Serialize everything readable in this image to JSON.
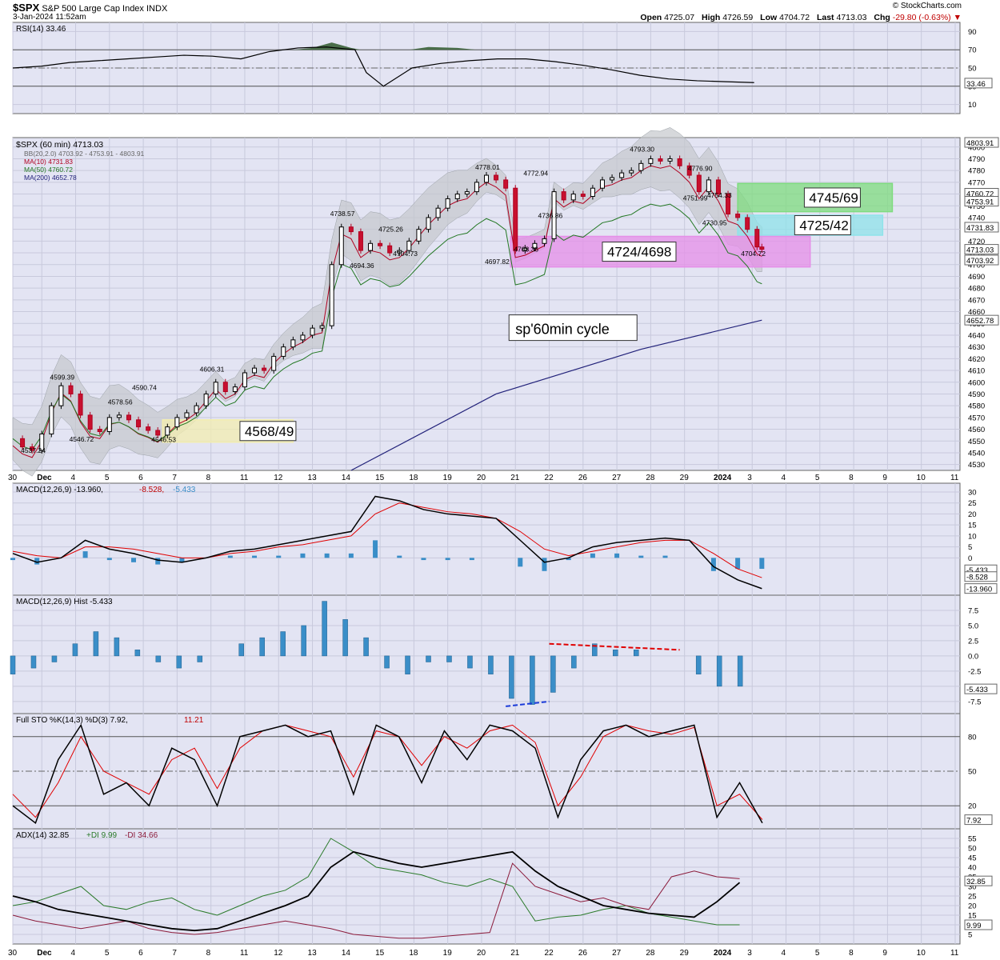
{
  "header": {
    "symbol": "$SPX",
    "name": "S&P 500 Large Cap Index",
    "exchange": "INDX",
    "datetime": "3-Jan-2024 11:52am",
    "brand": "© StockCharts.com",
    "open_label": "Open",
    "open": "4725.07",
    "high_label": "High",
    "high": "4726.59",
    "low_label": "Low",
    "low": "4704.72",
    "last_label": "Last",
    "last": "4713.03",
    "chg_label": "Chg",
    "chg": "-29.80 (-0.63%)"
  },
  "chart_data": [
    {
      "type": "line",
      "panel": "rsi",
      "legend": "RSI(14) 33.46",
      "ylim": [
        0,
        100
      ],
      "ticks": [
        "90",
        "70",
        "50",
        "30",
        "10"
      ],
      "tick_values": [
        90,
        70,
        50,
        30,
        10
      ],
      "reference_lines": [
        70,
        50,
        30
      ],
      "last_badge": "33.46",
      "x": [
        0,
        5,
        10,
        15,
        20,
        25,
        30,
        35,
        40,
        45,
        50,
        55,
        60,
        62,
        65,
        70,
        75,
        80,
        85,
        90,
        95,
        100,
        105,
        110,
        115,
        120,
        125,
        130
      ],
      "values": [
        50,
        52,
        56,
        58,
        60,
        62,
        64,
        63,
        60,
        68,
        72,
        73,
        70,
        45,
        30,
        50,
        55,
        58,
        60,
        60,
        57,
        53,
        48,
        42,
        38,
        36,
        35,
        34
      ]
    },
    {
      "type": "candlestick",
      "panel": "price",
      "legend": {
        "title": "$SPX (60 min) 4713.03",
        "bb": "BB(20,2.0) 4703.92 - 4753.91 - 4803.91",
        "ma10": "MA(10) 4731.83",
        "ma50": "MA(50) 4760.72",
        "ma200": "MA(200) 4652.78"
      },
      "ylim": [
        4525,
        4808
      ],
      "ticks": [
        4800,
        4790,
        4780,
        4770,
        4760,
        4750,
        4740,
        4730,
        4720,
        4710,
        4700,
        4690,
        4680,
        4670,
        4660,
        4650,
        4640,
        4630,
        4620,
        4610,
        4600,
        4590,
        4580,
        4570,
        4560,
        4550,
        4540,
        4530
      ],
      "x_labels": [
        "30",
        "Dec",
        "4",
        "5",
        "6",
        "7",
        "8",
        "11",
        "12",
        "13",
        "14",
        "15",
        "18",
        "19",
        "20",
        "21",
        "22",
        "26",
        "27",
        "28",
        "29",
        "2024",
        "3",
        "4",
        "5",
        "8",
        "9",
        "10",
        "11"
      ],
      "x_label_pos": [
        0,
        6,
        13,
        20,
        27,
        34,
        41,
        48,
        55,
        62,
        69,
        76,
        83,
        90,
        97,
        104,
        111,
        118,
        125,
        132,
        139,
        146,
        153,
        160,
        167,
        174,
        181,
        188,
        195
      ],
      "close_path": [
        [
          0,
          4552
        ],
        [
          2,
          4545
        ],
        [
          4,
          4542
        ],
        [
          6,
          4556
        ],
        [
          8,
          4580
        ],
        [
          10,
          4597
        ],
        [
          12,
          4590
        ],
        [
          14,
          4572
        ],
        [
          16,
          4560
        ],
        [
          18,
          4558
        ],
        [
          20,
          4570
        ],
        [
          22,
          4572
        ],
        [
          24,
          4568
        ],
        [
          26,
          4562
        ],
        [
          28,
          4559
        ],
        [
          30,
          4555
        ],
        [
          32,
          4562
        ],
        [
          34,
          4570
        ],
        [
          36,
          4574
        ],
        [
          38,
          4580
        ],
        [
          40,
          4590
        ],
        [
          42,
          4600
        ],
        [
          44,
          4592
        ],
        [
          46,
          4596
        ],
        [
          48,
          4608
        ],
        [
          50,
          4612
        ],
        [
          52,
          4610
        ],
        [
          54,
          4622
        ],
        [
          56,
          4630
        ],
        [
          58,
          4636
        ],
        [
          60,
          4640
        ],
        [
          62,
          4646
        ],
        [
          64,
          4648
        ],
        [
          66,
          4700
        ],
        [
          68,
          4732
        ],
        [
          70,
          4728
        ],
        [
          72,
          4712
        ],
        [
          74,
          4718
        ],
        [
          76,
          4716
        ],
        [
          78,
          4710
        ],
        [
          80,
          4712
        ],
        [
          82,
          4720
        ],
        [
          84,
          4730
        ],
        [
          86,
          4740
        ],
        [
          88,
          4748
        ],
        [
          90,
          4756
        ],
        [
          92,
          4760
        ],
        [
          94,
          4762
        ],
        [
          96,
          4770
        ],
        [
          98,
          4776
        ],
        [
          100,
          4772
        ],
        [
          102,
          4765
        ],
        [
          104,
          4712
        ],
        [
          106,
          4714
        ],
        [
          108,
          4718
        ],
        [
          110,
          4722
        ],
        [
          112,
          4762
        ],
        [
          114,
          4755
        ],
        [
          116,
          4760
        ],
        [
          118,
          4758
        ],
        [
          120,
          4765
        ],
        [
          122,
          4772
        ],
        [
          124,
          4774
        ],
        [
          126,
          4778
        ],
        [
          128,
          4780
        ],
        [
          130,
          4786
        ],
        [
          132,
          4790
        ],
        [
          134,
          4788
        ],
        [
          136,
          4790
        ],
        [
          138,
          4784
        ],
        [
          140,
          4776
        ],
        [
          142,
          4762
        ],
        [
          144,
          4772
        ],
        [
          146,
          4760
        ],
        [
          148,
          4743
        ],
        [
          150,
          4740
        ],
        [
          152,
          4730
        ],
        [
          154,
          4715
        ],
        [
          155,
          4713
        ]
      ],
      "annotations": [
        {
          "label": "4599.39",
          "x": 10,
          "y": 4599.39
        },
        {
          "label": "4590.74",
          "x": 27,
          "y": 4590.74
        },
        {
          "label": "4578.56",
          "x": 22,
          "y": 4578.56
        },
        {
          "label": "4537.24",
          "x": 4,
          "y": 4537.24
        },
        {
          "label": "4546.72",
          "x": 14,
          "y": 4546.72
        },
        {
          "label": "4546.53",
          "x": 31,
          "y": 4546.53
        },
        {
          "label": "4606.31",
          "x": 41,
          "y": 4606.31
        },
        {
          "label": "4738.57",
          "x": 68,
          "y": 4738.57
        },
        {
          "label": "4725.26",
          "x": 78,
          "y": 4725.26
        },
        {
          "label": "4694.36",
          "x": 72,
          "y": 4694.36
        },
        {
          "label": "4704.73",
          "x": 81,
          "y": 4704.73
        },
        {
          "label": "4778.01",
          "x": 98,
          "y": 4778.01
        },
        {
          "label": "4772.94",
          "x": 108,
          "y": 4772.94
        },
        {
          "label": "4736.86",
          "x": 111,
          "y": 4736.86
        },
        {
          "label": "4708.36",
          "x": 106,
          "y": 4708.36
        },
        {
          "label": "4697.82",
          "x": 100,
          "y": 4697.82
        },
        {
          "label": "4793.30",
          "x": 130,
          "y": 4793.3
        },
        {
          "label": "4776.90",
          "x": 142,
          "y": 4776.9
        },
        {
          "label": "4754.33",
          "x": 146,
          "y": 4754.33
        },
        {
          "label": "4751.99",
          "x": 141,
          "y": 4751.99
        },
        {
          "label": "4730.95",
          "x": 145,
          "y": 4730.95
        },
        {
          "label": "4704.72",
          "x": 153,
          "y": 4704.72
        }
      ],
      "zones": [
        {
          "label": "4745/69",
          "low": 4745,
          "high": 4769,
          "color": "#7fdc7f"
        },
        {
          "label": "4725/42",
          "low": 4725,
          "high": 4742,
          "color": "#8fe3ea"
        },
        {
          "label": "4724/4698",
          "low": 4698,
          "high": 4724,
          "color": "#e58fe8"
        },
        {
          "label": "4568/49",
          "low": 4549,
          "high": 4568,
          "color": "#f3eeb0"
        }
      ],
      "note": "sp'60min cycle",
      "right_badges": [
        {
          "label": "4803.91",
          "value": 4803.91,
          "color": "#ffffff"
        },
        {
          "label": "4760.72",
          "value": 4760.72,
          "color": "#ffffff"
        },
        {
          "label": "4753.91",
          "value": 4753.91,
          "color": "#ffffff"
        },
        {
          "label": "4731.83",
          "value": 4731.83,
          "color": "#ffffff"
        },
        {
          "label": "4713.03",
          "value": 4713.03,
          "color": "#ffffff"
        },
        {
          "label": "4703.92",
          "value": 4703.92,
          "color": "#ffffff"
        },
        {
          "label": "4652.78",
          "value": 4652.78,
          "color": "#ffffff"
        }
      ]
    },
    {
      "type": "line",
      "panel": "macd",
      "legend_name": "MACD(12,26,9)",
      "legend_vals": [
        "-13.960",
        "-8.528",
        "-5.433"
      ],
      "ylim": [
        -17,
        34
      ],
      "ticks": [
        30,
        25,
        20,
        15,
        10,
        5,
        0
      ],
      "badges": [
        "-5.433",
        "-8.528",
        "-13.960"
      ]
    },
    {
      "type": "bar",
      "panel": "hist",
      "legend": "MACD(12,26,9) Hist -5.433",
      "ylim": [
        -9.5,
        10
      ],
      "ticks": [
        "7.5",
        "5.0",
        "2.5",
        "0.0",
        "-2.5",
        "-5.0",
        "-7.5"
      ],
      "tick_values": [
        7.5,
        5.0,
        2.5,
        0.0,
        -2.5,
        -5.0,
        -7.5
      ],
      "badge": "-5.433"
    },
    {
      "type": "line",
      "panel": "sto",
      "legend_name": "Full STO %K(14,3) %D(3)",
      "legend_k": "7.92",
      "legend_d": "11.21",
      "ylim": [
        0,
        100
      ],
      "ticks": [
        "80",
        "50",
        "20"
      ],
      "tick_values": [
        80,
        50,
        20
      ],
      "badge": "7.92"
    },
    {
      "type": "line",
      "panel": "adx",
      "legend_name": "ADX(14) 32.85",
      "legend_pdi": "+DI 9.99",
      "legend_mdi": "-DI 34.66",
      "ylim": [
        0,
        60
      ],
      "ticks": [
        "55",
        "50",
        "45",
        "40",
        "35",
        "30",
        "25",
        "20",
        "15",
        "10",
        "5"
      ],
      "tick_values": [
        55,
        50,
        45,
        40,
        35,
        30,
        25,
        20,
        15,
        10,
        5
      ],
      "badges": [
        "32.85",
        "9.99"
      ],
      "x_labels": [
        "30",
        "Dec",
        "4",
        "5",
        "6",
        "7",
        "8",
        "11",
        "12",
        "13",
        "14",
        "15",
        "18",
        "19",
        "20",
        "21",
        "22",
        "26",
        "27",
        "28",
        "29",
        "2024",
        "3",
        "4",
        "5",
        "8",
        "9",
        "10",
        "11"
      ]
    }
  ]
}
